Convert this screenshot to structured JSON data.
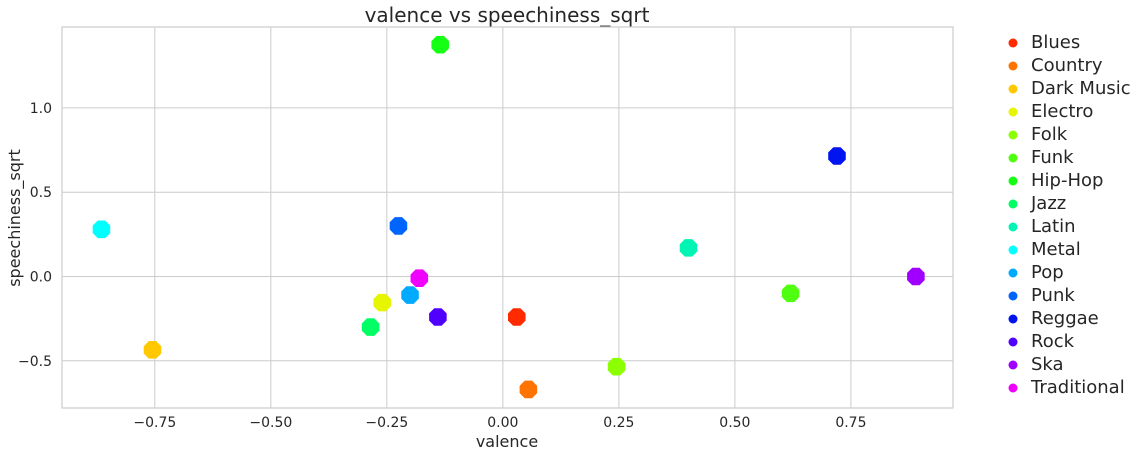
{
  "chart_data": {
    "type": "scatter",
    "title": "valence vs speechiness_sqrt",
    "xlabel": "valence",
    "ylabel": "speechiness_sqrt",
    "xlim": [
      -0.95,
      0.97
    ],
    "ylim": [
      -0.78,
      1.48
    ],
    "xticks": [
      -0.75,
      -0.5,
      -0.25,
      0.0,
      0.25,
      0.5,
      0.75
    ],
    "xtick_labels": [
      "−0.75",
      "−0.50",
      "−0.25",
      "0.00",
      "0.25",
      "0.50",
      "0.75"
    ],
    "yticks": [
      -0.5,
      0.0,
      0.5,
      1.0
    ],
    "ytick_labels": [
      "−0.5",
      "0.0",
      "0.5",
      "1.0"
    ],
    "grid": true,
    "legend_position": "outside-right",
    "series": [
      {
        "name": "Blues",
        "color": "#ff2a00",
        "x": 0.03,
        "y": -0.24
      },
      {
        "name": "Country",
        "color": "#ff7300",
        "x": 0.055,
        "y": -0.67
      },
      {
        "name": "Dark Music",
        "color": "#ffc800",
        "x": -0.755,
        "y": -0.435
      },
      {
        "name": "Electro",
        "color": "#e6f500",
        "x": -0.26,
        "y": -0.155
      },
      {
        "name": "Folk",
        "color": "#8cff00",
        "x": 0.245,
        "y": -0.535
      },
      {
        "name": "Funk",
        "color": "#50ff10",
        "x": 0.62,
        "y": -0.1
      },
      {
        "name": "Hip-Hop",
        "color": "#14ff14",
        "x": -0.135,
        "y": 1.375
      },
      {
        "name": "Jazz",
        "color": "#00ff64",
        "x": -0.285,
        "y": -0.3
      },
      {
        "name": "Latin",
        "color": "#00f5b4",
        "x": 0.4,
        "y": 0.17
      },
      {
        "name": "Metal",
        "color": "#00ffff",
        "x": -0.865,
        "y": 0.28
      },
      {
        "name": "Pop",
        "color": "#00aaff",
        "x": -0.2,
        "y": -0.11
      },
      {
        "name": "Punk",
        "color": "#0064ff",
        "x": -0.225,
        "y": 0.3
      },
      {
        "name": "Reggae",
        "color": "#0014f0",
        "x": 0.72,
        "y": 0.715
      },
      {
        "name": "Rock",
        "color": "#5000ff",
        "x": -0.14,
        "y": -0.24
      },
      {
        "name": "Ska",
        "color": "#a000ff",
        "x": 0.89,
        "y": 0.0
      },
      {
        "name": "Traditional",
        "color": "#f000ff",
        "x": -0.18,
        "y": -0.01
      }
    ]
  }
}
